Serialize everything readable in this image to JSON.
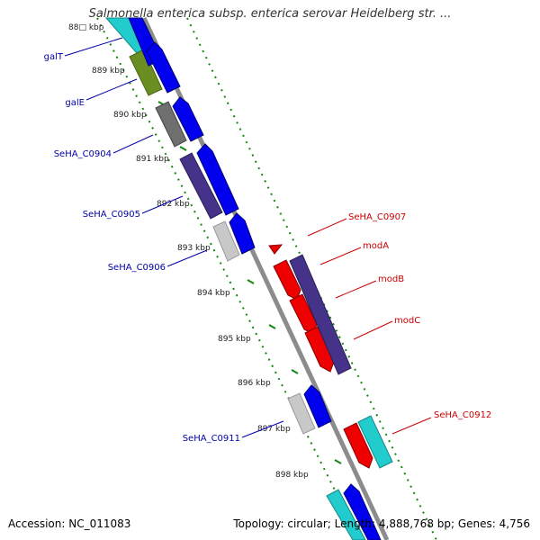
{
  "header": {
    "title": "Salmonella enterica subsp. enterica serovar Heidelberg str. ..."
  },
  "footer": {
    "accession": "Accession: NC_011083",
    "summary": "Topology: circular; Length: 4,888,768 bp; Genes: 4,756"
  },
  "scale": {
    "unit_suffix": "kbp",
    "partial_first_label": "88□ kbp",
    "ticks": [
      "889 kbp",
      "890 kbp",
      "891 kbp",
      "892 kbp",
      "893 kbp",
      "894 kbp",
      "895 kbp",
      "896 kbp",
      "897 kbp",
      "898 kbp"
    ]
  },
  "genes_left": [
    {
      "name": "galT",
      "color": "#0000aa"
    },
    {
      "name": "galE",
      "color": "#0000aa"
    },
    {
      "name": "SeHA_C0904",
      "color": "#0000aa"
    },
    {
      "name": "SeHA_C0905",
      "color": "#0000aa"
    },
    {
      "name": "SeHA_C0906",
      "color": "#0000aa"
    },
    {
      "name": "SeHA_C0911",
      "color": "#0000aa"
    }
  ],
  "genes_right": [
    {
      "name": "SeHA_C0907",
      "color": "#cc0000"
    },
    {
      "name": "modA",
      "color": "#cc0000"
    },
    {
      "name": "modB",
      "color": "#cc0000"
    },
    {
      "name": "modC",
      "color": "#cc0000"
    },
    {
      "name": "SeHA_C0912",
      "color": "#cc0000"
    }
  ],
  "colors": {
    "backbone": "#8c8c8c",
    "dotted_track": "#118811",
    "forward_cds": "#0000ee",
    "reverse_cds": "#ee0000",
    "cog_cyan": "#22cccc",
    "cog_olive": "#6b8e23",
    "cog_gray": "#6f6f6f",
    "cog_purple": "#443388",
    "cog_lightgray": "#c8c8c8"
  }
}
